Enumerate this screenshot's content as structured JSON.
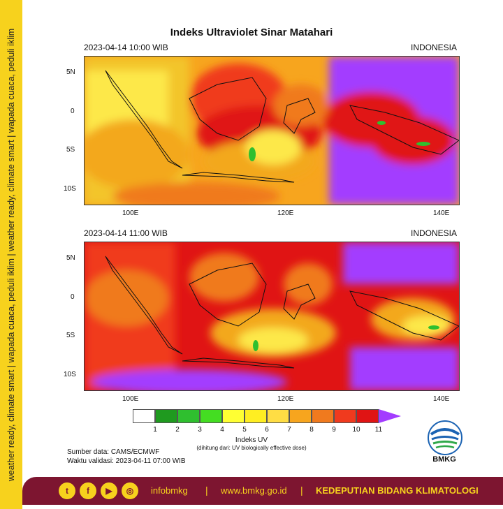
{
  "sidebar": {
    "text": "weather ready, climate smart  |  wapada cuaca, peduli iklim  |  weather ready, climate smart  |  wapada cuaca, peduli iklim"
  },
  "title": "Indeks Ultraviolet Sinar Matahari",
  "panels": [
    {
      "datetime": "2023-04-14  10:00 WIB",
      "region": "INDONESIA"
    },
    {
      "datetime": "2023-04-14  11:00 WIB",
      "region": "INDONESIA"
    }
  ],
  "axes": {
    "lat_labels": [
      "5N",
      "0",
      "5S",
      "10S"
    ],
    "lon_labels": [
      "100E",
      "120E",
      "140E"
    ]
  },
  "legend": {
    "labels": [
      "1",
      "2",
      "3",
      "4",
      "5",
      "6",
      "7",
      "8",
      "9",
      "10",
      "11"
    ],
    "colors": [
      "#ffffff",
      "#1f9a1f",
      "#2fbf2f",
      "#44dd22",
      "#ffff33",
      "#ffee22",
      "#ffdd44",
      "#f7a51e",
      "#f07a1e",
      "#f03a1e",
      "#e01414",
      "#c80f14"
    ],
    "arrow_color": "#a33cff",
    "title": "Indeks UV",
    "subtitle": "(dihitung dari: UV biologically effective dose)"
  },
  "source": {
    "line1": "Sumber data: CAMS/ECMWF",
    "line2": "Waktu validasi: 2023-04-11 07:00 WIB"
  },
  "logo": {
    "text": "BMKG"
  },
  "footer": {
    "handle": "infobmkg",
    "website": "www.bmkg.go.id",
    "org": "KEDEPUTIAN BIDANG KLIMATOLOGI",
    "separator": "|",
    "social_icons": [
      "twitter-icon",
      "facebook-icon",
      "youtube-icon",
      "instagram-icon"
    ]
  }
}
